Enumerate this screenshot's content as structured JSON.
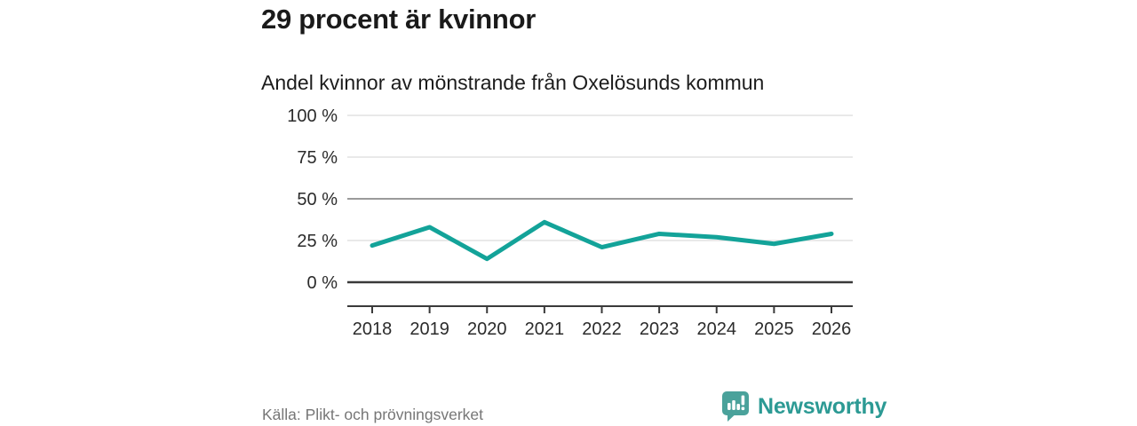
{
  "header": {
    "title": "29 procent är kvinnor",
    "subtitle": "Andel kvinnor av mönstrande från Oxelösunds kommun"
  },
  "chart_data": {
    "type": "line",
    "title": "29 procent är kvinnor",
    "subtitle": "Andel kvinnor av mönstrande från Oxelösunds kommun",
    "categories": [
      2018,
      2019,
      2020,
      2021,
      2022,
      2023,
      2024,
      2025,
      2026
    ],
    "values": [
      22,
      33,
      14,
      36,
      21,
      29,
      27,
      23,
      29
    ],
    "series_name": "Andel kvinnor av mönstrande (%)",
    "xlabel": "",
    "ylabel": "",
    "ylim": [
      0,
      100
    ],
    "yticks": [
      0,
      25,
      50,
      75,
      100
    ],
    "ytick_suffix": " %",
    "legend": "none",
    "grid": "horizontal",
    "line_color": "#13a399",
    "axis_color": "#3a3a3a",
    "gridline_styles": {
      "0": {
        "color": "#3a3a3a",
        "width": 2.5
      },
      "50": {
        "color": "#9a9a9a",
        "width": 2
      },
      "default": {
        "color": "#e2e2e2",
        "width": 1.5
      }
    }
  },
  "footer": {
    "source": "Källa: Plikt- och prövningsverket",
    "brand": {
      "name": "Newsworthy",
      "icon": "newsworthy-logo-icon",
      "icon_color": "#4aa29b",
      "text_color": "#2c9a94"
    }
  }
}
